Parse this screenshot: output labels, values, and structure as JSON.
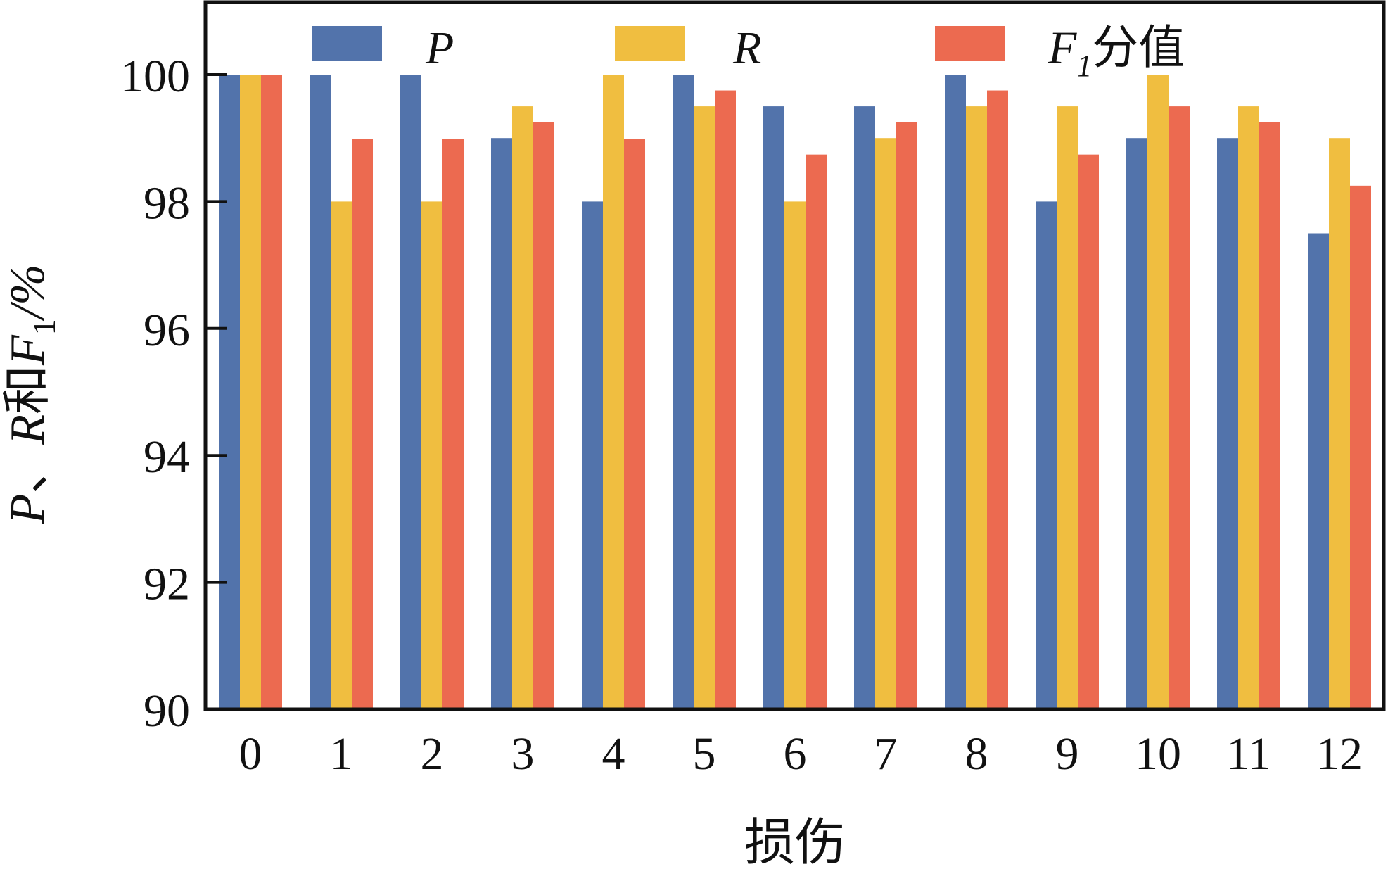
{
  "chart_data": {
    "type": "bar",
    "title": "",
    "xlabel": "损伤",
    "ylabel": "P、R和F1/%",
    "ylabel_parts": {
      "p": "P",
      "sep": "、",
      "r": "R",
      "and": "和",
      "f": "F",
      "sub": "1",
      "unit": "/%"
    },
    "ylim": [
      90,
      100
    ],
    "yticks": [
      90,
      92,
      94,
      96,
      98,
      100
    ],
    "categories": [
      "0",
      "1",
      "2",
      "3",
      "4",
      "5",
      "6",
      "7",
      "8",
      "9",
      "10",
      "11",
      "12"
    ],
    "series": [
      {
        "name": "P",
        "color": "#5273ab",
        "values": [
          100,
          100,
          100,
          99,
          98,
          100,
          99.5,
          99.5,
          100,
          98,
          99,
          99,
          97.5
        ]
      },
      {
        "name": "R",
        "color": "#f0be40",
        "values": [
          100,
          98,
          98,
          99.5,
          100,
          99.5,
          98,
          99,
          99.5,
          99.5,
          100,
          99.5,
          99
        ]
      },
      {
        "name": "F1分值",
        "color": "#ec6a50",
        "values": [
          100,
          98.99,
          98.99,
          99.25,
          98.99,
          99.75,
          98.74,
          99.25,
          99.75,
          98.74,
          99.5,
          99.25,
          98.25
        ]
      }
    ],
    "legend": {
      "position": "top",
      "labels": [
        {
          "main": "P"
        },
        {
          "main": "R"
        },
        {
          "main": "F",
          "sub": "1",
          "suffix": "分值"
        }
      ]
    },
    "grid": false
  }
}
